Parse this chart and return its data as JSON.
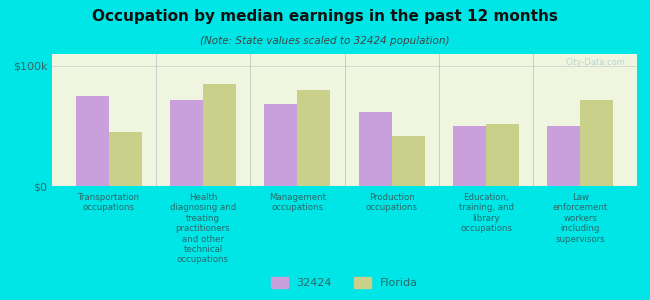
{
  "title": "Occupation by median earnings in the past 12 months",
  "subtitle": "(Note: State values scaled to 32424 population)",
  "categories": [
    "Transportation\noccupations",
    "Health\ndiagnosing and\ntreating\npractitioners\nand other\ntechnical\noccupations",
    "Management\noccupations",
    "Production\noccupations",
    "Education,\ntraining, and\nlibrary\noccupations",
    "Law\nenforcement\nworkers\nincluding\nsupervisors"
  ],
  "values_32424": [
    75000,
    72000,
    68000,
    62000,
    50000,
    50000
  ],
  "values_florida": [
    45000,
    85000,
    80000,
    42000,
    52000,
    72000
  ],
  "color_32424": "#c9a0dc",
  "color_florida": "#c8d08a",
  "bar_width": 0.35,
  "ylim": [
    0,
    110000
  ],
  "yticks": [
    0,
    100000
  ],
  "ytick_labels": [
    "$0",
    "$100k"
  ],
  "background_color": "#00e5e5",
  "plot_bg_color": "#f0f5e0",
  "legend_labels": [
    "32424",
    "Florida"
  ],
  "watermark": "City-Data.com"
}
